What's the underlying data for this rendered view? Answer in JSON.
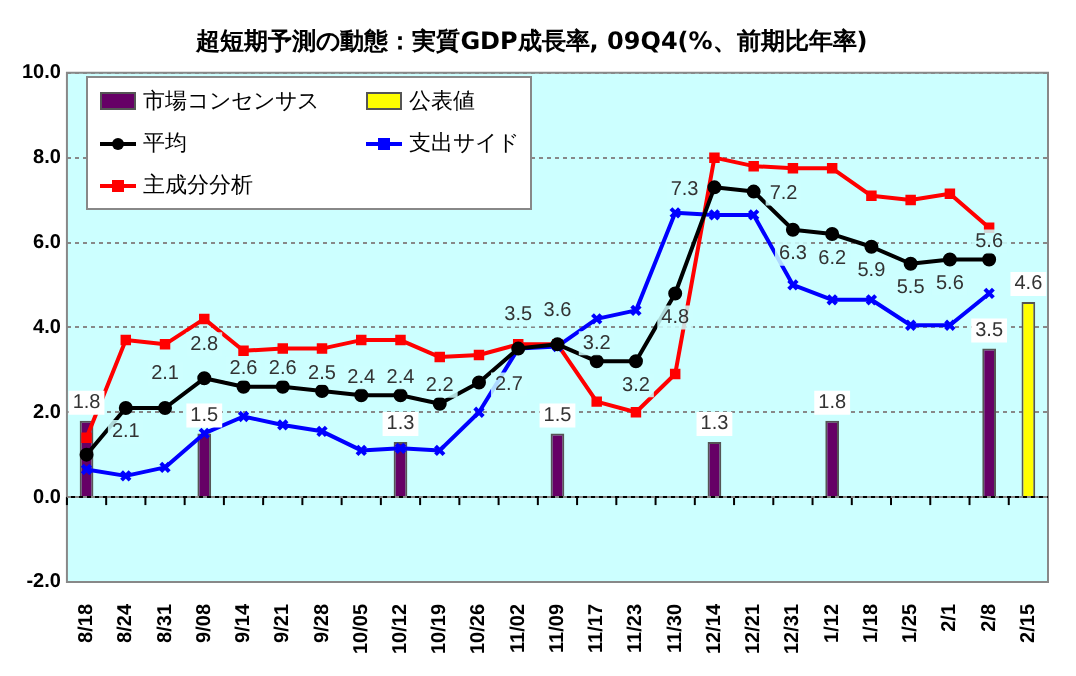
{
  "chart_data": {
    "type": "line",
    "title": "超短期予測の動態：実質GDP成長率, 09Q4(%、前期比年率)",
    "categories": [
      "8/18",
      "8/24",
      "8/31",
      "9/08",
      "9/14",
      "9/21",
      "9/28",
      "10/05",
      "10/12",
      "10/19",
      "10/26",
      "11/02",
      "11/09",
      "11/17",
      "11/23",
      "11/30",
      "12/14",
      "12/21",
      "12/31",
      "1/12",
      "1/18",
      "1/25",
      "2/1",
      "2/8",
      "2/15"
    ],
    "series": [
      {
        "name": "市場コンセンサス",
        "type": "bar",
        "color": "#660066",
        "values": [
          1.8,
          null,
          null,
          1.5,
          null,
          null,
          null,
          null,
          1.3,
          null,
          null,
          null,
          1.5,
          null,
          null,
          null,
          1.3,
          null,
          null,
          1.8,
          null,
          null,
          null,
          3.5,
          null
        ],
        "value_labels": [
          "1.8",
          null,
          null,
          "1.5",
          null,
          null,
          null,
          null,
          "1.3",
          null,
          null,
          null,
          "1.5",
          null,
          null,
          null,
          "1.3",
          null,
          null,
          "1.8",
          null,
          null,
          null,
          "3.5",
          null
        ]
      },
      {
        "name": "公表値",
        "type": "bar",
        "color": "#ffff00",
        "values": [
          null,
          null,
          null,
          null,
          null,
          null,
          null,
          null,
          null,
          null,
          null,
          null,
          null,
          null,
          null,
          null,
          null,
          null,
          null,
          null,
          null,
          null,
          null,
          null,
          4.6
        ],
        "value_labels": [
          null,
          null,
          null,
          null,
          null,
          null,
          null,
          null,
          null,
          null,
          null,
          null,
          null,
          null,
          null,
          null,
          null,
          null,
          null,
          null,
          null,
          null,
          null,
          null,
          "4.6"
        ]
      },
      {
        "name": "平均",
        "color": "#000000",
        "marker": "circle",
        "values": [
          1.0,
          2.1,
          2.1,
          2.8,
          2.6,
          2.6,
          2.5,
          2.4,
          2.4,
          2.2,
          2.7,
          3.5,
          3.6,
          3.2,
          3.2,
          4.8,
          7.3,
          7.2,
          6.3,
          6.2,
          5.9,
          5.5,
          5.6,
          5.6,
          null
        ],
        "value_labels": [
          null,
          "2.1",
          "2.1",
          "2.8",
          "2.6",
          "2.6",
          "2.5",
          "2.4",
          "2.4",
          "2.2",
          "2.7",
          "3.5",
          "3.6",
          "3.2",
          "3.2",
          "4.8",
          "7.3",
          "7.2",
          "6.3",
          "6.2",
          "5.9",
          "5.5",
          "5.6",
          "5.6",
          null
        ]
      },
      {
        "name": "支出サイド",
        "color": "#0000ff",
        "marker": "cross",
        "values": [
          0.65,
          0.5,
          0.7,
          1.5,
          1.9,
          1.7,
          1.55,
          1.1,
          1.15,
          1.1,
          2.0,
          3.5,
          3.55,
          4.2,
          4.4,
          6.7,
          6.65,
          6.65,
          5.0,
          4.65,
          4.65,
          4.05,
          4.05,
          4.8,
          null
        ]
      },
      {
        "name": "主成分分析",
        "color": "#ff0000",
        "marker": "square",
        "values": [
          1.4,
          3.7,
          3.6,
          4.2,
          3.45,
          3.5,
          3.5,
          3.7,
          3.7,
          3.3,
          3.35,
          3.6,
          3.6,
          2.25,
          2.0,
          2.9,
          8.0,
          7.8,
          7.75,
          7.75,
          7.1,
          7.0,
          7.15,
          6.35,
          null
        ]
      }
    ],
    "ylim": [
      -2,
      10
    ],
    "yticks": [
      {
        "value": -2,
        "label": "-2.0"
      },
      {
        "value": 0,
        "label": "0.0"
      },
      {
        "value": 2,
        "label": "2.0"
      },
      {
        "value": 4,
        "label": "4.0"
      },
      {
        "value": 6,
        "label": "6.0"
      },
      {
        "value": 8,
        "label": "8.0"
      },
      {
        "value": 10,
        "label": "10.0"
      }
    ],
    "grid": "y",
    "legend": "top left"
  }
}
